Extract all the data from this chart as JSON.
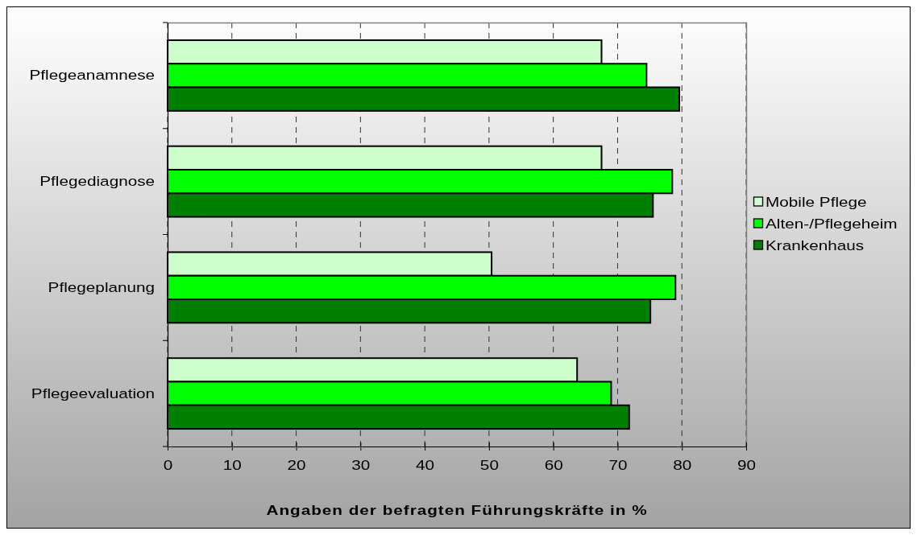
{
  "chart_data": {
    "type": "bar",
    "orientation": "horizontal",
    "categories": [
      "Pflegeanamnese",
      "Pflegediagnose",
      "Pflegeplanung",
      "Pflegeevaluation"
    ],
    "series": [
      {
        "name": "Mobile Pflege",
        "color": "#ccffcc",
        "values": [
          67.5,
          67.5,
          50.4,
          63.7
        ]
      },
      {
        "name": "Alten-/Pflegeheim",
        "color": "#00ff00",
        "values": [
          74.5,
          78.5,
          79.0,
          69.0
        ]
      },
      {
        "name": "Krankenhaus",
        "color": "#008000",
        "values": [
          79.6,
          75.5,
          75.1,
          71.8
        ]
      }
    ],
    "xlabel": "Angaben der befragten Führungskräfte in %",
    "xlim": [
      0,
      90
    ],
    "xticks": [
      0,
      10,
      20,
      30,
      40,
      50,
      60,
      70,
      80,
      90
    ],
    "grid": "x",
    "legend": "right"
  }
}
